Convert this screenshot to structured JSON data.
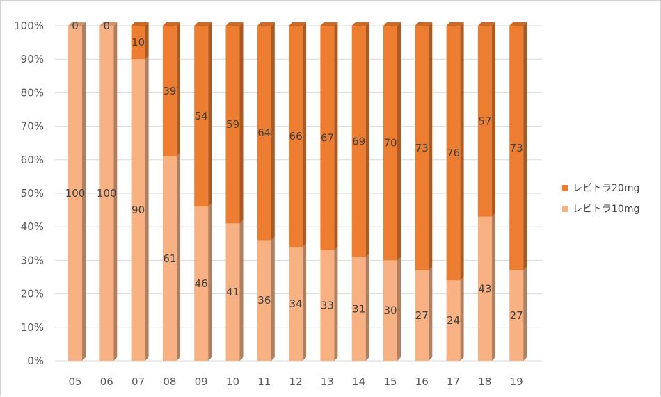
{
  "chart_data": {
    "type": "bar",
    "stacked": "percent",
    "categories": [
      "05",
      "06",
      "07",
      "08",
      "09",
      "10",
      "11",
      "12",
      "13",
      "14",
      "15",
      "16",
      "17",
      "18",
      "19"
    ],
    "series": [
      {
        "name": "レビトラ10mg",
        "color": "#f7b183",
        "values": [
          100,
          100,
          90,
          61,
          46,
          41,
          36,
          34,
          33,
          31,
          30,
          27,
          24,
          43,
          27
        ]
      },
      {
        "name": "レビトラ20mg",
        "color": "#ed7d31",
        "values": [
          0,
          0,
          10,
          39,
          54,
          59,
          64,
          66,
          67,
          69,
          70,
          73,
          76,
          57,
          73
        ]
      }
    ],
    "yticks": [
      "0%",
      "10%",
      "20%",
      "30%",
      "40%",
      "50%",
      "60%",
      "70%",
      "80%",
      "90%",
      "100%"
    ],
    "ylim": [
      0,
      100
    ],
    "grid": true,
    "legend": "right"
  }
}
